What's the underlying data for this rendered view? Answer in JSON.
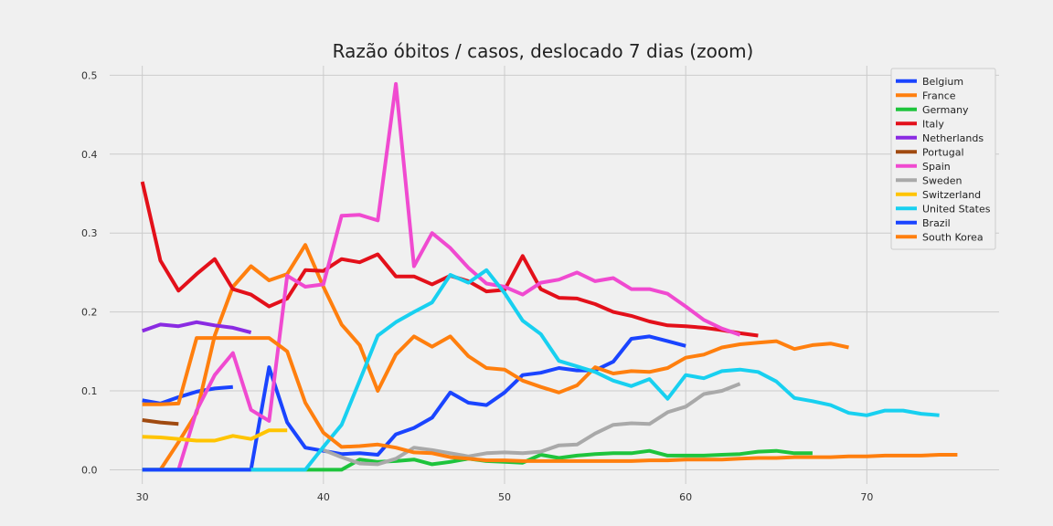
{
  "chart_data": {
    "type": "line",
    "title": "Razão óbitos / casos, deslocado 7 dias (zoom)",
    "xlabel": "",
    "ylabel": "",
    "xlim": [
      28.2,
      77.3
    ],
    "ylim": [
      -0.018,
      0.512
    ],
    "xticks": [
      30,
      40,
      50,
      60,
      70
    ],
    "yticks": [
      0.0,
      0.1,
      0.2,
      0.3,
      0.4,
      0.5
    ],
    "xtick_labels": [
      "30",
      "40",
      "50",
      "60",
      "70"
    ],
    "ytick_labels": [
      "0.0",
      "0.1",
      "0.2",
      "0.3",
      "0.4",
      "0.5"
    ],
    "grid": true,
    "legend_position": "top-right",
    "series": [
      {
        "name": "Belgium",
        "color": "#1a44ff",
        "x": [
          30,
          31,
          32,
          33,
          34,
          35
        ],
        "y": [
          0.088,
          0.084,
          0.092,
          0.099,
          0.103,
          0.105
        ]
      },
      {
        "name": "Belgium",
        "color": "#1a44ff",
        "x": [
          36,
          37,
          38,
          39,
          40,
          41,
          42,
          43,
          44,
          45,
          46,
          47,
          48,
          49,
          50,
          51,
          52,
          53,
          54,
          55,
          56,
          57,
          58,
          59,
          60
        ],
        "y": [
          0.0,
          0.13,
          0.06,
          0.028,
          0.024,
          0.02,
          0.021,
          0.019,
          0.045,
          0.053,
          0.066,
          0.098,
          0.085,
          0.082,
          0.098,
          0.12,
          0.123,
          0.129,
          0.126,
          0.126,
          0.137,
          0.166,
          0.169,
          0.163,
          0.157
        ]
      },
      {
        "name": "France",
        "color": "#ff7f0e",
        "x": [
          30,
          31,
          32,
          33,
          34,
          35,
          36,
          37,
          38,
          39,
          40,
          41,
          42,
          43,
          44,
          45,
          46,
          47,
          48,
          49,
          50,
          51,
          52,
          53,
          54,
          55,
          56,
          57,
          58,
          59,
          60,
          61,
          62,
          63,
          64,
          65,
          66,
          67,
          68,
          69
        ],
        "y": [
          0.0,
          0.0,
          0.035,
          0.072,
          0.17,
          0.232,
          0.258,
          0.24,
          0.248,
          0.285,
          0.232,
          0.184,
          0.158,
          0.1,
          0.146,
          0.169,
          0.156,
          0.169,
          0.144,
          0.129,
          0.127,
          0.113,
          0.105,
          0.098,
          0.107,
          0.13,
          0.122,
          0.125,
          0.124,
          0.129,
          0.142,
          0.146,
          0.155,
          0.159,
          0.161,
          0.163,
          0.153,
          0.158,
          0.16,
          0.155
        ]
      },
      {
        "name": "Germany",
        "color": "#1ec43c",
        "x": [
          30,
          31,
          32,
          33,
          34,
          35,
          36,
          37,
          38,
          39,
          40,
          41,
          42,
          43,
          44,
          45,
          46,
          47,
          48,
          49,
          50,
          51,
          52,
          53,
          54,
          55,
          56,
          57,
          58,
          59,
          60,
          61,
          62,
          63,
          64,
          65,
          66,
          67
        ],
        "y": [
          0.0,
          0.0,
          0.0,
          0.0,
          0.0,
          0.0,
          0.0,
          0.0,
          0.0,
          0.0,
          0.0,
          0.0,
          0.013,
          0.01,
          0.011,
          0.013,
          0.007,
          0.01,
          0.014,
          0.011,
          0.01,
          0.009,
          0.019,
          0.015,
          0.018,
          0.02,
          0.021,
          0.021,
          0.024,
          0.018,
          0.018,
          0.018,
          0.019,
          0.02,
          0.023,
          0.024,
          0.021,
          0.021
        ]
      },
      {
        "name": "Italy",
        "color": "#e3101a",
        "x": [
          30,
          31,
          32,
          33,
          34,
          35,
          36,
          37,
          38,
          39,
          40,
          41,
          42,
          43,
          44,
          45,
          46,
          47,
          48,
          49,
          50,
          51,
          52,
          53,
          54,
          55,
          56,
          57,
          58,
          59,
          60,
          61,
          62,
          63,
          64
        ],
        "y": [
          0.365,
          0.265,
          0.227,
          0.248,
          0.267,
          0.229,
          0.222,
          0.207,
          0.217,
          0.253,
          0.252,
          0.267,
          0.263,
          0.273,
          0.245,
          0.245,
          0.235,
          0.246,
          0.239,
          0.226,
          0.228,
          0.271,
          0.229,
          0.218,
          0.217,
          0.21,
          0.2,
          0.195,
          0.188,
          0.183,
          0.182,
          0.18,
          0.177,
          0.173,
          0.17
        ]
      },
      {
        "name": "Netherlands",
        "color": "#8a2be2",
        "x": [
          30,
          31,
          32,
          33,
          34,
          35,
          36
        ],
        "y": [
          0.176,
          0.184,
          0.182,
          0.187,
          0.183,
          0.18,
          0.174
        ]
      },
      {
        "name": "Portugal",
        "color": "#a04a10",
        "x": [
          30,
          31,
          32
        ],
        "y": [
          0.063,
          0.06,
          0.058
        ]
      },
      {
        "name": "Spain",
        "color": "#f04ad0",
        "x": [
          32,
          33,
          34,
          35,
          36,
          37,
          38,
          39,
          40,
          41,
          42,
          43,
          44,
          45,
          46,
          47,
          48,
          49,
          50,
          51,
          52,
          53,
          54,
          55,
          56,
          57,
          58,
          59,
          60,
          61,
          62,
          63
        ],
        "y": [
          0.0,
          0.075,
          0.12,
          0.148,
          0.076,
          0.062,
          0.246,
          0.232,
          0.235,
          0.322,
          0.323,
          0.316,
          0.489,
          0.258,
          0.3,
          0.281,
          0.256,
          0.236,
          0.232,
          0.222,
          0.237,
          0.241,
          0.25,
          0.239,
          0.243,
          0.229,
          0.229,
          0.223,
          0.207,
          0.19,
          0.179,
          0.171
        ]
      },
      {
        "name": "Sweden",
        "color": "#a9a9a9",
        "x": [
          40,
          41,
          42,
          43,
          44,
          45,
          46,
          47,
          48,
          49,
          50,
          51,
          52,
          53,
          54,
          55,
          56,
          57,
          58,
          59,
          60,
          61,
          62,
          63
        ],
        "y": [
          0.025,
          0.016,
          0.008,
          0.007,
          0.014,
          0.028,
          0.025,
          0.021,
          0.017,
          0.021,
          0.022,
          0.021,
          0.023,
          0.031,
          0.032,
          0.046,
          0.057,
          0.059,
          0.058,
          0.073,
          0.08,
          0.096,
          0.1,
          0.109
        ]
      },
      {
        "name": "Switzerland",
        "color": "#ffc400",
        "x": [
          30,
          31,
          32,
          33,
          34,
          35,
          36,
          37,
          38
        ],
        "y": [
          0.042,
          0.041,
          0.039,
          0.037,
          0.037,
          0.043,
          0.039,
          0.05,
          0.05
        ]
      },
      {
        "name": "United States",
        "color": "#18d0f0",
        "x": [
          30,
          31,
          32,
          33,
          34,
          35,
          36,
          37,
          38,
          39,
          40,
          41,
          42,
          43,
          44,
          45,
          46,
          47,
          48,
          49,
          50,
          51,
          52,
          53,
          54,
          55,
          56,
          57,
          58,
          59,
          60,
          61,
          62,
          63,
          64,
          65,
          66,
          67,
          68,
          69,
          70,
          71,
          72,
          73,
          74
        ],
        "y": [
          0.0,
          0.0,
          0.0,
          0.0,
          0.0,
          0.0,
          0.0,
          0.0,
          0.0,
          0.0,
          0.029,
          0.057,
          0.113,
          0.17,
          0.187,
          0.2,
          0.212,
          0.247,
          0.237,
          0.253,
          0.224,
          0.189,
          0.172,
          0.138,
          0.131,
          0.124,
          0.113,
          0.106,
          0.115,
          0.09,
          0.12,
          0.116,
          0.125,
          0.127,
          0.124,
          0.112,
          0.091,
          0.087,
          0.082,
          0.072,
          0.069,
          0.075,
          0.075,
          0.071,
          0.069
        ]
      },
      {
        "name": "Brazil",
        "color": "#1a44ff",
        "x": [
          30,
          31,
          32,
          33,
          34,
          35,
          36
        ],
        "y": [
          0.0,
          0.0,
          0.0,
          0.0,
          0.0,
          0.0,
          0.0
        ]
      },
      {
        "name": "South Korea",
        "color": "#ff7f0e",
        "x": [
          30,
          31,
          32,
          33,
          34,
          35,
          36,
          37,
          38,
          39,
          40,
          41,
          42,
          43,
          44,
          45,
          46,
          47,
          48,
          49,
          50,
          51,
          52,
          53,
          54,
          55,
          56,
          57,
          58,
          59,
          60,
          61,
          62,
          63,
          64,
          65,
          66,
          67,
          68,
          69,
          70,
          71,
          72,
          73,
          74,
          75
        ],
        "y": [
          0.083,
          0.083,
          0.084,
          0.167,
          0.167,
          0.167,
          0.167,
          0.167,
          0.15,
          0.085,
          0.047,
          0.029,
          0.03,
          0.032,
          0.028,
          0.022,
          0.021,
          0.016,
          0.014,
          0.012,
          0.012,
          0.011,
          0.011,
          0.011,
          0.011,
          0.011,
          0.011,
          0.011,
          0.012,
          0.012,
          0.013,
          0.013,
          0.013,
          0.014,
          0.015,
          0.015,
          0.016,
          0.016,
          0.016,
          0.017,
          0.017,
          0.018,
          0.018,
          0.018,
          0.019,
          0.019
        ]
      }
    ],
    "legend": [
      {
        "name": "Belgium",
        "color": "#1a44ff"
      },
      {
        "name": "France",
        "color": "#ff7f0e"
      },
      {
        "name": "Germany",
        "color": "#1ec43c"
      },
      {
        "name": "Italy",
        "color": "#e3101a"
      },
      {
        "name": "Netherlands",
        "color": "#8a2be2"
      },
      {
        "name": "Portugal",
        "color": "#a04a10"
      },
      {
        "name": "Spain",
        "color": "#f04ad0"
      },
      {
        "name": "Sweden",
        "color": "#a9a9a9"
      },
      {
        "name": "Switzerland",
        "color": "#ffc400"
      },
      {
        "name": "United States",
        "color": "#18d0f0"
      },
      {
        "name": "Brazil",
        "color": "#1a44ff"
      },
      {
        "name": "South Korea",
        "color": "#ff7f0e"
      }
    ]
  }
}
